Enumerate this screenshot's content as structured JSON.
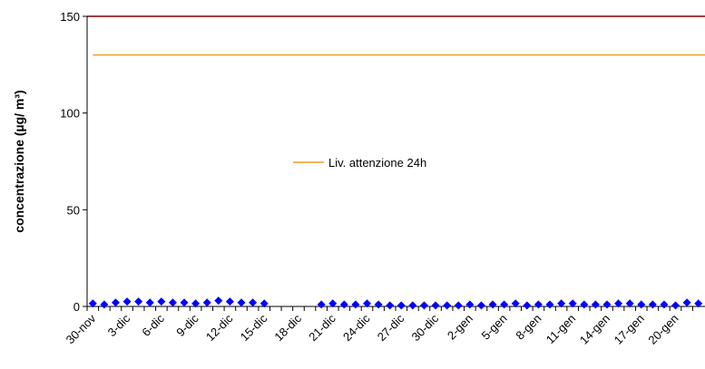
{
  "chart_data": {
    "type": "line",
    "y_label": "concentrazione (µg/ m³)",
    "categories": [
      "30-nov",
      null,
      null,
      "3-dic",
      null,
      null,
      "6-dic",
      null,
      null,
      "9-dic",
      null,
      null,
      "12-dic",
      null,
      null,
      "15-dic",
      null,
      null,
      "18-dic",
      null,
      null,
      "21-dic",
      null,
      null,
      "24-dic",
      null,
      null,
      "27-dic",
      null,
      null,
      "30-dic",
      null,
      null,
      "2-gen",
      null,
      null,
      "5-gen",
      null,
      null,
      "8-gen",
      null,
      null,
      "11-gen",
      null,
      null,
      "14-gen",
      null,
      null,
      "17-gen",
      null,
      null,
      "20-gen",
      null,
      null
    ],
    "series": [
      {
        "color": "#0000ff",
        "values": [
          1.5,
          1,
          2,
          2.5,
          2.5,
          2,
          2.5,
          2,
          2,
          1.5,
          2,
          3,
          2.5,
          2,
          2,
          1.5,
          null,
          null,
          null,
          null,
          1,
          1.5,
          1,
          1,
          1.5,
          1,
          0.5,
          0.5,
          0.5,
          0.5,
          0.5,
          0.5,
          0.5,
          1,
          0.5,
          1,
          1,
          1.5,
          0.5,
          1,
          1,
          1.5,
          1.5,
          1,
          1,
          1,
          1.5,
          1.5,
          1,
          1,
          1,
          0.5,
          2,
          1.5
        ]
      }
    ],
    "threshold": {
      "name": "Liv. attenzione 24h",
      "value": 130,
      "color": "#f0a020"
    },
    "ylim": [
      0,
      150
    ],
    "yticks": [
      0,
      50,
      100,
      150
    ]
  }
}
